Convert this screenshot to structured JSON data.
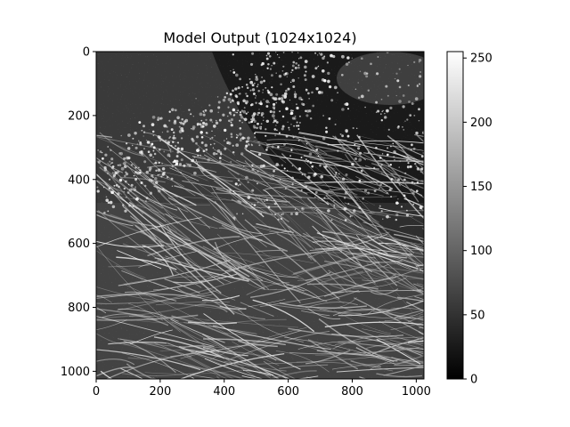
{
  "chart_data": {
    "type": "heatmap",
    "title": "Model Output (1024x1024)",
    "xlabel": "",
    "ylabel": "",
    "xlim": [
      0,
      1024
    ],
    "ylim": [
      1024,
      0
    ],
    "x_ticks": [
      0,
      200,
      400,
      600,
      800,
      1000
    ],
    "y_ticks": [
      0,
      200,
      400,
      600,
      800,
      1000
    ],
    "colormap": "gray",
    "colorbar": {
      "range": [
        0,
        255
      ],
      "ticks": [
        0,
        50,
        100,
        150,
        200,
        250
      ]
    },
    "grid": false,
    "image_content": "grayscale microscopy image of dense bright fibrous filaments in the lower half and bright speckled spots on a dark background in the upper right"
  }
}
